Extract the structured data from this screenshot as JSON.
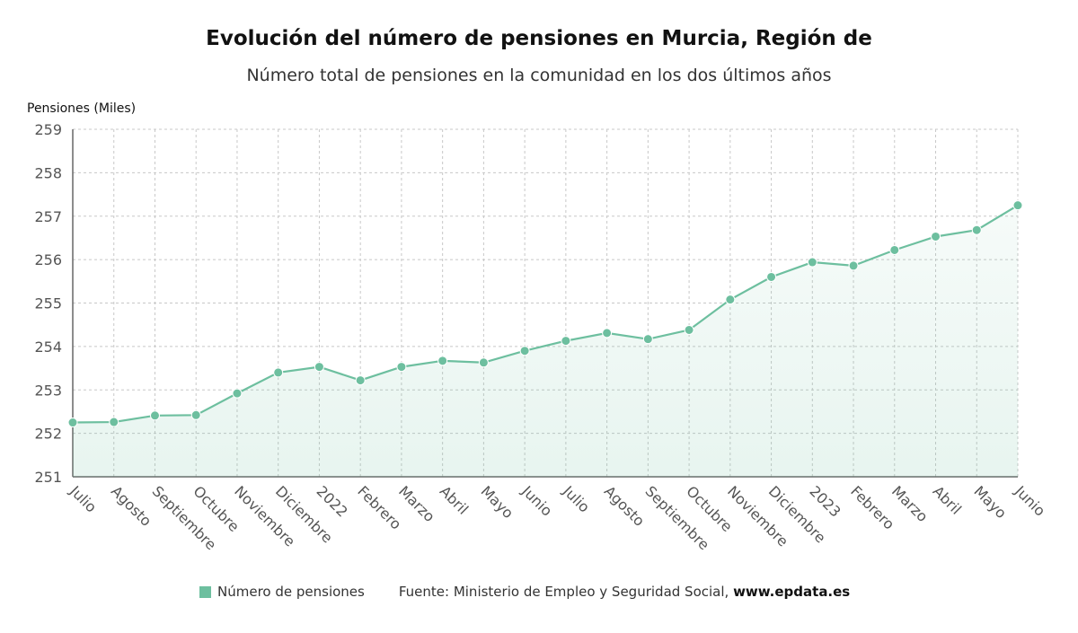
{
  "chart_data": {
    "type": "area",
    "title": "Evolución del número de pensiones en Murcia, Región de",
    "subtitle": "Número total de pensiones en la comunidad en los dos últimos años",
    "ylabel": "Pensiones (Miles)",
    "ylim": [
      251,
      259
    ],
    "yticks": [
      "251",
      "252",
      "253",
      "254",
      "255",
      "256",
      "257",
      "258",
      "259"
    ],
    "categories": [
      "Julio",
      "Agosto",
      "Septiembre",
      "Octubre",
      "Noviembre",
      "Diciembre",
      "2022",
      "Febrero",
      "Marzo",
      "Abril",
      "Mayo",
      "Junio",
      "Julio",
      "Agosto",
      "Septiembre",
      "Octubre",
      "Noviembre",
      "Diciembre",
      "2023",
      "Febrero",
      "Marzo",
      "Abril",
      "Mayo",
      "Junio"
    ],
    "series": [
      {
        "name": "Número de pensiones",
        "color": "#6dbf9f",
        "values": [
          252.25,
          252.26,
          252.41,
          252.42,
          252.92,
          253.4,
          253.53,
          253.22,
          253.53,
          253.67,
          253.63,
          253.9,
          254.13,
          254.31,
          254.17,
          254.38,
          255.08,
          255.6,
          255.94,
          255.86,
          256.22,
          256.53,
          256.68,
          257.25
        ]
      }
    ],
    "grid": true,
    "legend": "bottom"
  },
  "footer": {
    "legend_label": "Número de pensiones",
    "source_text": "Fuente: Ministerio de Empleo y Seguridad Social, ",
    "source_site": "www.epdata.es"
  }
}
